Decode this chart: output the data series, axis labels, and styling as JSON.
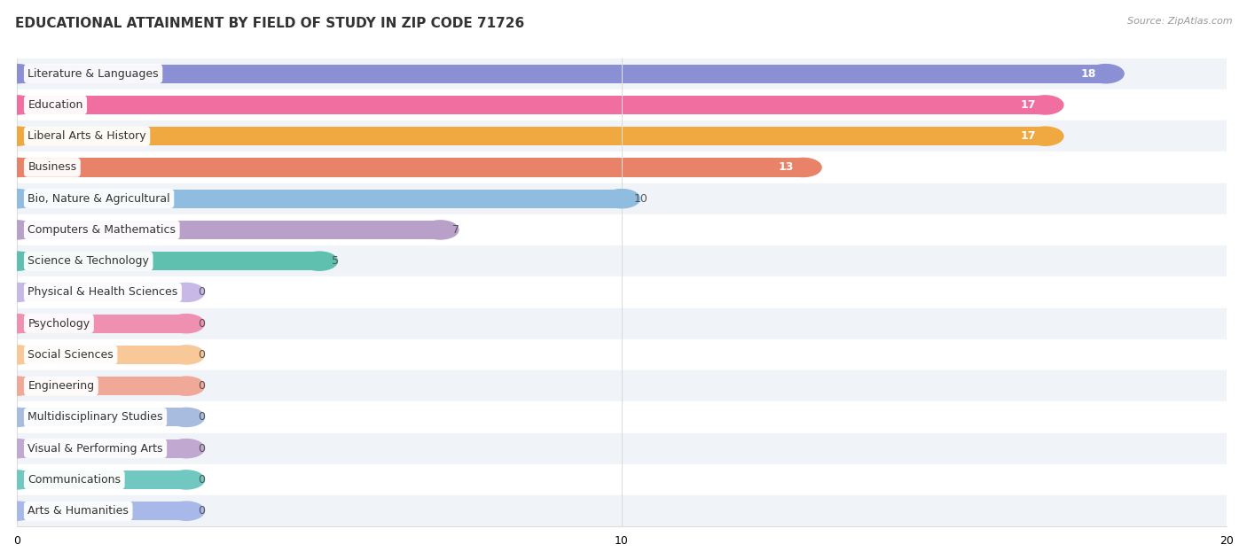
{
  "title": "EDUCATIONAL ATTAINMENT BY FIELD OF STUDY IN ZIP CODE 71726",
  "source": "Source: ZipAtlas.com",
  "categories": [
    "Literature & Languages",
    "Education",
    "Liberal Arts & History",
    "Business",
    "Bio, Nature & Agricultural",
    "Computers & Mathematics",
    "Science & Technology",
    "Physical & Health Sciences",
    "Psychology",
    "Social Sciences",
    "Engineering",
    "Multidisciplinary Studies",
    "Visual & Performing Arts",
    "Communications",
    "Arts & Humanities"
  ],
  "values": [
    18,
    17,
    17,
    13,
    10,
    7,
    5,
    0,
    0,
    0,
    0,
    0,
    0,
    0,
    0
  ],
  "bar_colors": [
    "#8b8fd4",
    "#f06fa0",
    "#f0a840",
    "#e8836a",
    "#90bce0",
    "#b8a0c8",
    "#60c0b0",
    "#c8b8e8",
    "#f090b0",
    "#f8c898",
    "#f0a898",
    "#a8bce0",
    "#c0a8d0",
    "#70c8c0",
    "#a8b8e8"
  ],
  "xlim": [
    0,
    20
  ],
  "xticks": [
    0,
    10,
    20
  ],
  "background_color": "#ffffff",
  "row_bg_even": "#f0f4f8",
  "row_bg_odd": "#ffffff",
  "bar_height": 0.6,
  "title_fontsize": 11,
  "label_fontsize": 9,
  "value_fontsize": 9,
  "zero_bar_stub": 2.8
}
